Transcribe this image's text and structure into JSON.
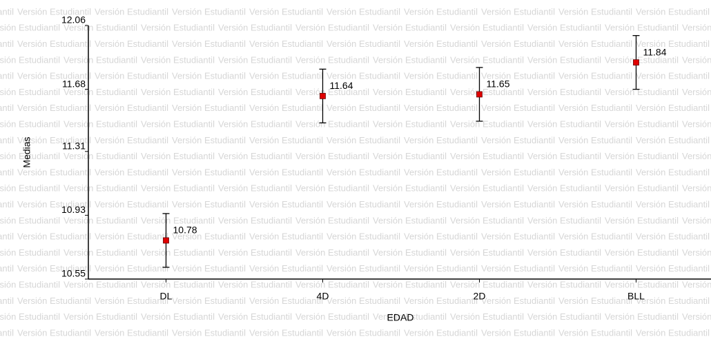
{
  "chart_data": {
    "type": "errorbar",
    "watermark": "Versión Estudiantil",
    "x_label": "EDAD",
    "y_label": "Medias",
    "categories": [
      "DL",
      "4D",
      "2D",
      "BLL"
    ],
    "values": [
      10.78,
      11.64,
      11.65,
      11.84
    ],
    "errors": [
      0.16,
      0.16,
      0.16,
      0.16
    ],
    "color": "#e00000",
    "ylim": [
      10.55,
      12.06
    ],
    "yticks": [
      10.55,
      10.93,
      11.31,
      11.68,
      12.06
    ]
  }
}
